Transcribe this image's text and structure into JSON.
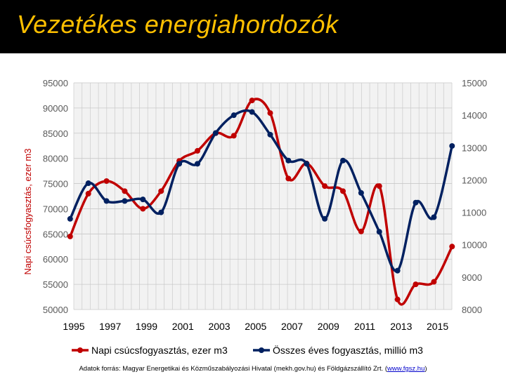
{
  "slide": {
    "title": "Vezetékes energiahordozók",
    "source_prefix": "Adatok forrás: Magyar Energetikai és Közműszabályozási Hivatal (mekh.gov.hu) és Földgázszállító Zrt. (",
    "source_link": "www.fgsz.hu",
    "source_suffix": ")"
  },
  "chart_data": {
    "type": "line",
    "title": "",
    "x_tick_labels": [
      "1995",
      "1997",
      "1999",
      "2001",
      "2003",
      "2005",
      "2007",
      "2009",
      "2011",
      "2013",
      "2015"
    ],
    "xlim": [
      1995,
      2015
    ],
    "xlabel": "",
    "ylabel_left": "Napi csúcsfogyasztás, ezer m3",
    "ylim_left": [
      50000,
      95000
    ],
    "yticks_left": [
      50000,
      55000,
      60000,
      65000,
      70000,
      75000,
      80000,
      85000,
      90000,
      95000
    ],
    "ylim_right": [
      8000,
      15000
    ],
    "yticks_right": [
      8000,
      9000,
      10000,
      11000,
      12000,
      13000,
      14000,
      15000
    ],
    "grid": true,
    "legend_position": "bottom",
    "smooth": true,
    "series": [
      {
        "name": "Napi csúcsfogyasztás, ezer m3",
        "axis": "left",
        "color": "#C00000",
        "x": [
          1994.8,
          1995.8,
          1996.8,
          1997.8,
          1998.8,
          1999.8,
          2000.8,
          2001.8,
          2002.8,
          2003.8,
          2004.8,
          2005.8,
          2006.8,
          2007.8,
          2008.8,
          2009.8,
          2010.8,
          2011.8,
          2012.8,
          2013.8,
          2014.8,
          2015.8
        ],
        "values": [
          64500,
          73000,
          75500,
          73500,
          70000,
          73500,
          79500,
          81500,
          85000,
          84500,
          91500,
          89000,
          76000,
          79000,
          74500,
          73500,
          65500,
          74500,
          52000,
          55000,
          55500,
          62500
        ]
      },
      {
        "name": "Összes éves fogyasztás, millió m3",
        "axis": "right",
        "color": "#002060",
        "x": [
          1994.8,
          1995.8,
          1996.8,
          1997.8,
          1998.8,
          1999.8,
          2000.8,
          2001.8,
          2002.8,
          2003.8,
          2004.8,
          2005.8,
          2006.8,
          2007.8,
          2008.8,
          2009.8,
          2010.8,
          2011.8,
          2012.8,
          2013.8,
          2014.8,
          2015.8
        ],
        "values": [
          10800,
          11900,
          11350,
          11350,
          11400,
          11000,
          12500,
          12500,
          13450,
          14000,
          14100,
          13400,
          12600,
          12500,
          10800,
          12600,
          11600,
          10400,
          9200,
          11300,
          10850,
          13050
        ]
      }
    ]
  }
}
